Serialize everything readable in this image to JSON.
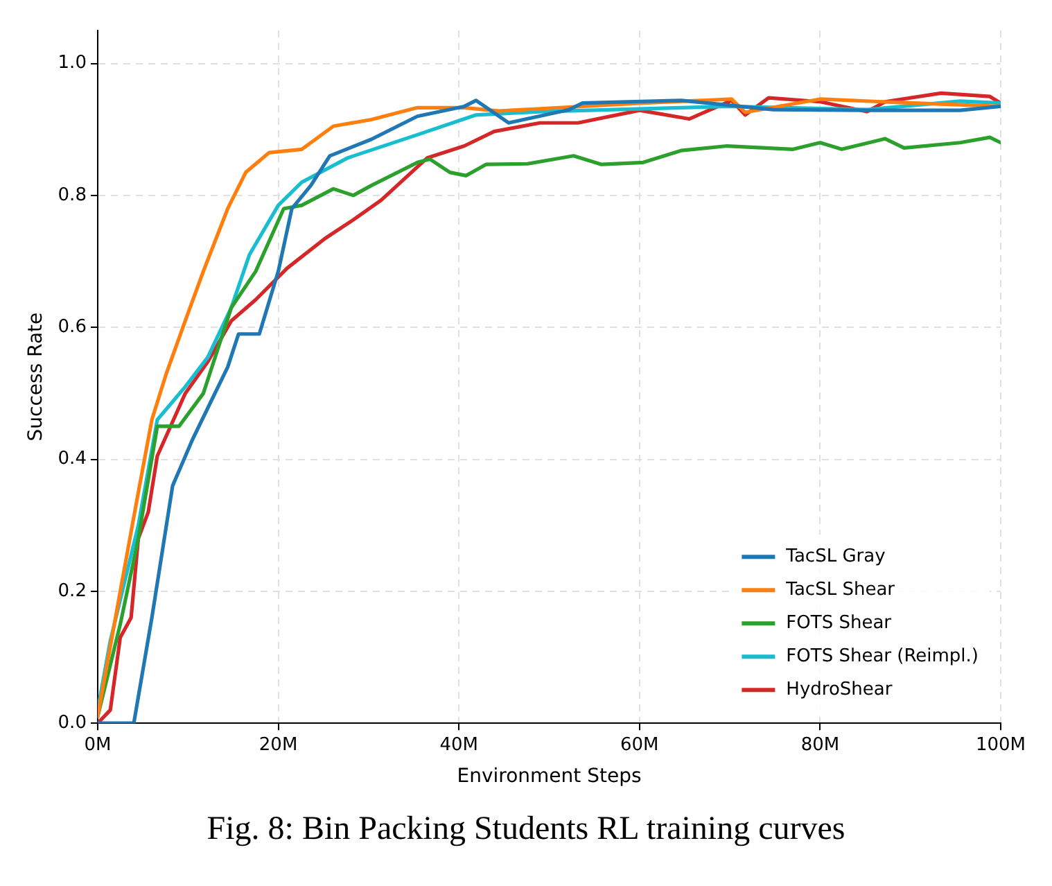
{
  "chart_data": {
    "type": "line",
    "xlabel": "Environment Steps",
    "ylabel": "Success Rate",
    "annotations": [
      "Fig. 8: Bin Packing Students RL training curves"
    ],
    "xlim": [
      0,
      100
    ],
    "xticks": [
      {
        "value": 0,
        "label": "0M"
      },
      {
        "value": 20,
        "label": "20M"
      },
      {
        "value": 40,
        "label": "40M"
      },
      {
        "value": 60,
        "label": "60M"
      },
      {
        "value": 80,
        "label": "80M"
      },
      {
        "value": 100,
        "label": "100M"
      }
    ],
    "ylim": [
      0,
      1.05
    ],
    "yticks": [
      {
        "value": 0,
        "label": "0.0"
      },
      {
        "value": 0.2,
        "label": "0.2"
      },
      {
        "value": 0.4,
        "label": "0.4"
      },
      {
        "value": 0.6,
        "label": "0.6"
      },
      {
        "value": 0.8,
        "label": "0.8"
      },
      {
        "value": 1,
        "label": "1.0"
      }
    ],
    "grid": true,
    "legend": "bottom right",
    "line_style": "solid",
    "marker": "none",
    "series": [
      {
        "name": "TacSL Gray",
        "color": "#1f77b4",
        "x": [
          0,
          4,
          6,
          8.3,
          10.5,
          14.4,
          15.6,
          17.9,
          20,
          21.5,
          23.6,
          25.7,
          30.3,
          35.4,
          40.6,
          41.9,
          45.5,
          52.2,
          53.7,
          64.6,
          74.8,
          85.2,
          95.5,
          100
        ],
        "values": [
          0,
          0,
          0.16,
          0.36,
          0.43,
          0.54,
          0.59,
          0.59,
          0.685,
          0.78,
          0.815,
          0.86,
          0.885,
          0.92,
          0.935,
          0.944,
          0.91,
          0.93,
          0.94,
          0.944,
          0.93,
          0.929,
          0.929,
          0.935
        ]
      },
      {
        "name": "TacSL Shear",
        "color": "#ff7f0e",
        "x": [
          0,
          2.5,
          4.5,
          6,
          7.6,
          9.7,
          11.7,
          14.4,
          16.4,
          19,
          22.6,
          26.1,
          30.3,
          35.4,
          40.6,
          44.4,
          60.4,
          70.2,
          71.7,
          80,
          90.3,
          100
        ],
        "values": [
          0.01,
          0.2,
          0.35,
          0.46,
          0.53,
          0.61,
          0.685,
          0.78,
          0.835,
          0.865,
          0.87,
          0.905,
          0.915,
          0.933,
          0.933,
          0.928,
          0.94,
          0.946,
          0.926,
          0.946,
          0.94,
          0.935
        ]
      },
      {
        "name": "FOTS Shear",
        "color": "#2ca02c",
        "x": [
          0,
          2.5,
          4.5,
          6.6,
          9,
          11.7,
          14.8,
          17.5,
          20.6,
          22.6,
          26.1,
          28.3,
          30.3,
          35.4,
          36.8,
          39,
          40.8,
          43,
          47.6,
          52.7,
          55.8,
          60.4,
          64.6,
          69.7,
          77,
          80,
          82.4,
          87.2,
          89.3,
          95.5,
          98.8,
          100
        ],
        "values": [
          0.01,
          0.15,
          0.28,
          0.45,
          0.45,
          0.5,
          0.63,
          0.685,
          0.78,
          0.785,
          0.81,
          0.8,
          0.815,
          0.85,
          0.855,
          0.835,
          0.83,
          0.847,
          0.848,
          0.86,
          0.847,
          0.85,
          0.868,
          0.875,
          0.87,
          0.88,
          0.87,
          0.886,
          0.872,
          0.88,
          0.888,
          0.88
        ]
      },
      {
        "name": "FOTS Shear (Reimpl.)",
        "color": "#17becf",
        "x": [
          0,
          1.4,
          4.5,
          6.6,
          9.7,
          12.2,
          14.8,
          16.8,
          20,
          22.6,
          27.7,
          35.4,
          41.9,
          49,
          69.7,
          85.2,
          95.5,
          100
        ],
        "values": [
          0.02,
          0.125,
          0.3,
          0.46,
          0.51,
          0.555,
          0.63,
          0.71,
          0.785,
          0.82,
          0.857,
          0.892,
          0.922,
          0.927,
          0.935,
          0.93,
          0.943,
          0.94
        ]
      },
      {
        "name": "HydroShear",
        "color": "#d62728",
        "x": [
          0,
          1.4,
          2.5,
          3.7,
          4.5,
          5.6,
          6.6,
          9.7,
          12.2,
          14.8,
          17.5,
          21,
          25.2,
          28.3,
          31.4,
          36.5,
          40.6,
          43.9,
          49,
          53.2,
          60,
          65.5,
          70.2,
          71.7,
          74.3,
          80,
          85.2,
          87.2,
          93.4,
          98.8,
          100
        ],
        "values": [
          0,
          0.02,
          0.13,
          0.16,
          0.28,
          0.32,
          0.405,
          0.5,
          0.548,
          0.61,
          0.642,
          0.69,
          0.735,
          0.763,
          0.793,
          0.857,
          0.875,
          0.897,
          0.91,
          0.91,
          0.929,
          0.916,
          0.944,
          0.922,
          0.948,
          0.942,
          0.927,
          0.942,
          0.955,
          0.95,
          0.94
        ]
      }
    ]
  }
}
